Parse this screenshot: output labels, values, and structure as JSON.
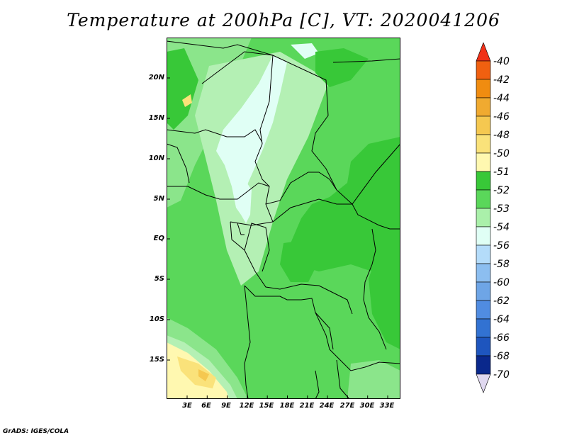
{
  "title": "Temperature at 200hPa [C], VT: 2020041206",
  "credit": "GrADS: IGES/COLA",
  "axes": {
    "y_ticks": [
      "20N",
      "15N",
      "10N",
      "5N",
      "EQ",
      "5S",
      "10S",
      "15S"
    ],
    "x_ticks": [
      "3E",
      "6E",
      "9E",
      "12E",
      "15E",
      "18E",
      "21E",
      "24E",
      "27E",
      "30E",
      "33E"
    ]
  },
  "colorbar": {
    "levels": [
      "-40",
      "-42",
      "-44",
      "-46",
      "-48",
      "-50",
      "-51",
      "-52",
      "-53",
      "-54",
      "-56",
      "-58",
      "-60",
      "-62",
      "-64",
      "-66",
      "-68",
      "-70"
    ],
    "colors": [
      "#f03018",
      "#f06010",
      "#f08c10",
      "#f0aa30",
      "#f5c850",
      "#fae27a",
      "#fff8b0",
      "#38c838",
      "#5ad75a",
      "#aaf0aa",
      "#e0fff5",
      "#b4dcfa",
      "#8cbef0",
      "#6ea5e6",
      "#508ce1",
      "#3272d2",
      "#1e55be",
      "#0a288c",
      "#e0d8f0"
    ]
  },
  "map_colors": {
    "c52": "#38c838",
    "c53": "#5ad75a",
    "c54": "#8be58b",
    "c55": "#b4f0b4",
    "c56": "#e0fff5",
    "warm1": "#fff8b0",
    "warm2": "#fae27a",
    "warm3": "#f5c850"
  }
}
